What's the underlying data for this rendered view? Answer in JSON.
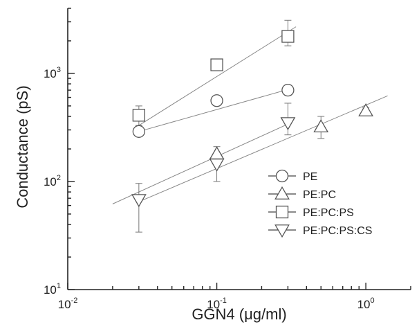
{
  "chart_data": {
    "type": "scatter",
    "title": "",
    "xlabel": "GGN4 (μg/ml)",
    "ylabel": "Conductance (pS)",
    "xscale": "log",
    "yscale": "log",
    "xlim": [
      0.01,
      2
    ],
    "ylim": [
      10,
      4000
    ],
    "grid": false,
    "legend_position": "right",
    "x_ticks": [
      {
        "base": "10",
        "exp": "-2",
        "value": 0.01
      },
      {
        "base": "10",
        "exp": "-1",
        "value": 0.1
      },
      {
        "base": "10",
        "exp": "0",
        "value": 1
      }
    ],
    "y_ticks": [
      {
        "base": "10",
        "exp": "1",
        "value": 10
      },
      {
        "base": "10",
        "exp": "2",
        "value": 100
      },
      {
        "base": "10",
        "exp": "3",
        "value": 1000
      }
    ],
    "series": [
      {
        "name": "PE",
        "marker": "circle",
        "points": [
          {
            "x": 0.03,
            "y": 290,
            "err_lo": 10,
            "err_hi": 10
          },
          {
            "x": 0.1,
            "y": 560,
            "err_lo": 40,
            "err_hi": 60
          },
          {
            "x": 0.3,
            "y": 700,
            "err_lo": 50,
            "err_hi": 60
          }
        ],
        "fit": {
          "x": [
            0.03,
            0.3
          ],
          "y": [
            290,
            710
          ]
        }
      },
      {
        "name": "PE:PC",
        "marker": "triangle-up",
        "points": [
          {
            "x": 0.1,
            "y": 180,
            "err_lo": 30,
            "err_hi": 30
          },
          {
            "x": 0.5,
            "y": 320,
            "err_lo": 70,
            "err_hi": 80
          },
          {
            "x": 1.0,
            "y": 450,
            "err_lo": 30,
            "err_hi": 30
          }
        ],
        "fit": {
          "x": [
            0.03,
            1.4
          ],
          "y": [
            65,
            620
          ]
        }
      },
      {
        "name": "PE:PC:PS",
        "marker": "square",
        "points": [
          {
            "x": 0.03,
            "y": 410,
            "err_lo": 80,
            "err_hi": 90
          },
          {
            "x": 0.1,
            "y": 1200,
            "err_lo": 80,
            "err_hi": 80
          },
          {
            "x": 0.3,
            "y": 2200,
            "err_lo": 400,
            "err_hi": 900
          }
        ],
        "fit": {
          "x": [
            0.03,
            0.34
          ],
          "y": [
            330,
            2700
          ]
        }
      },
      {
        "name": "PE:PC:PS:CS",
        "marker": "triangle-down",
        "points": [
          {
            "x": 0.03,
            "y": 68,
            "err_lo": 34,
            "err_hi": 28
          },
          {
            "x": 0.1,
            "y": 145,
            "err_lo": 45,
            "err_hi": 40
          },
          {
            "x": 0.3,
            "y": 350,
            "err_lo": 80,
            "err_hi": 180
          }
        ],
        "fit": {
          "x": [
            0.02,
            0.3
          ],
          "y": [
            62,
            340
          ]
        }
      }
    ]
  }
}
